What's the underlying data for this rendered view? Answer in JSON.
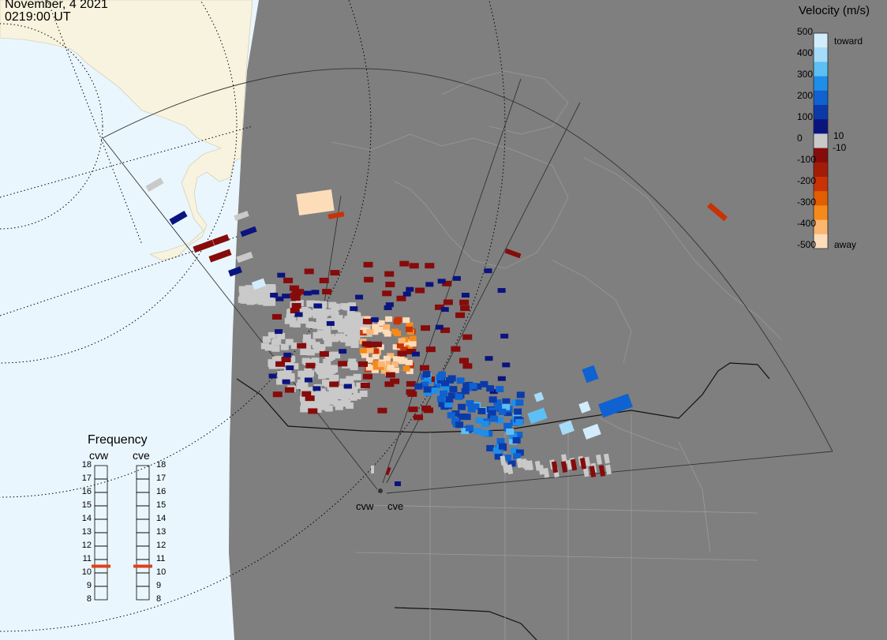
{
  "header": {
    "date": "November, 4 2021",
    "time": "0219:00 UT"
  },
  "colorbar": {
    "title": "Velocity (m/s)",
    "ticks": [
      "500",
      "400",
      "300",
      "200",
      "100",
      "0",
      "-100",
      "-200",
      "-300",
      "-400",
      "-500"
    ],
    "toward_label": "toward",
    "away_label": "away",
    "pos_threshold": "10",
    "neg_threshold": "-10",
    "colors": [
      "#d2ecfb",
      "#a6dbf9",
      "#5ebff5",
      "#1e8ee8",
      "#0f62d0",
      "#0b3aa8",
      "#0a147f",
      "#c9c9c9",
      "#860b0b",
      "#a31c07",
      "#c83205",
      "#e25e00",
      "#f58a1a",
      "#fbb670",
      "#fddcba"
    ]
  },
  "frequency": {
    "title": "Frequency",
    "radars": [
      "cvw",
      "cve"
    ],
    "scale": [
      "18",
      "17",
      "16",
      "15",
      "14",
      "13",
      "12",
      "11",
      "10",
      "9",
      "8"
    ],
    "cvw_mhz": 10.5,
    "cve_mhz": 10.5,
    "marker_color": "#e0401a"
  },
  "radar_sites": [
    "cvw",
    "cve"
  ],
  "map_colors": {
    "ocean": "#eaf6fd",
    "land_day": "#f7f3de",
    "night": "#7f7f7f",
    "ground_scatter": "#c9c9c9"
  }
}
